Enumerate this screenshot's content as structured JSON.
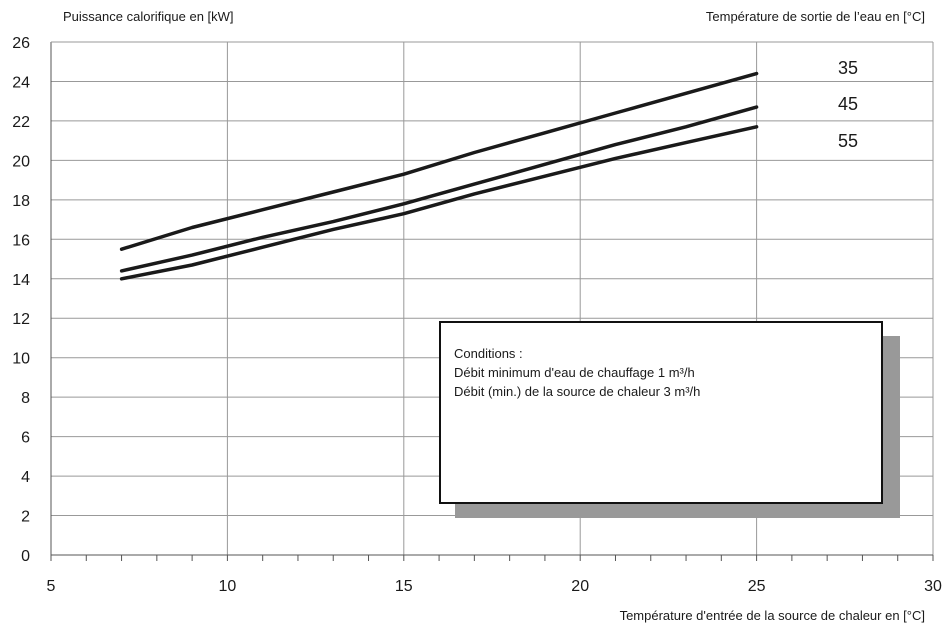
{
  "chart_data": {
    "type": "line",
    "ylabel": "Puissance calorifique en [kW]",
    "xlabel": "Température d'entrée de la source de chaleur en [°C]",
    "legend_title": "Température de sortie de l’eau en [°C]",
    "legend_placement": "right, beside line ends",
    "xlim": [
      5,
      30
    ],
    "ylim": [
      0,
      26
    ],
    "x_ticks": [
      5,
      10,
      15,
      20,
      25,
      30
    ],
    "y_ticks": [
      0,
      2,
      4,
      6,
      8,
      10,
      12,
      14,
      16,
      18,
      20,
      22,
      24,
      26
    ],
    "grid": true,
    "series": [
      {
        "name": "35",
        "x": [
          7,
          9,
          11,
          13,
          15,
          17,
          19,
          21,
          23,
          25
        ],
        "y": [
          15.5,
          16.6,
          17.5,
          18.4,
          19.3,
          20.4,
          21.4,
          22.4,
          23.4,
          24.4
        ]
      },
      {
        "name": "45",
        "x": [
          7,
          9,
          11,
          13,
          15,
          17,
          19,
          21,
          23,
          25
        ],
        "y": [
          14.4,
          15.2,
          16.1,
          16.9,
          17.8,
          18.8,
          19.8,
          20.8,
          21.7,
          22.7
        ]
      },
      {
        "name": "55",
        "x": [
          7,
          9,
          11,
          13,
          15,
          17,
          19,
          21,
          23,
          25
        ],
        "y": [
          14.0,
          14.7,
          15.6,
          16.5,
          17.3,
          18.3,
          19.2,
          20.1,
          20.9,
          21.7
        ]
      }
    ],
    "annotation": {
      "lines": [
        "Conditions :",
        "Débit minimum d'eau de chauffage 1 m³/h",
        "Débit (min.) de la source de chaleur 3 m³/h"
      ]
    },
    "colors": {
      "line": "#1a1a1a",
      "grid": "#999999",
      "shadow": "#999999"
    }
  }
}
